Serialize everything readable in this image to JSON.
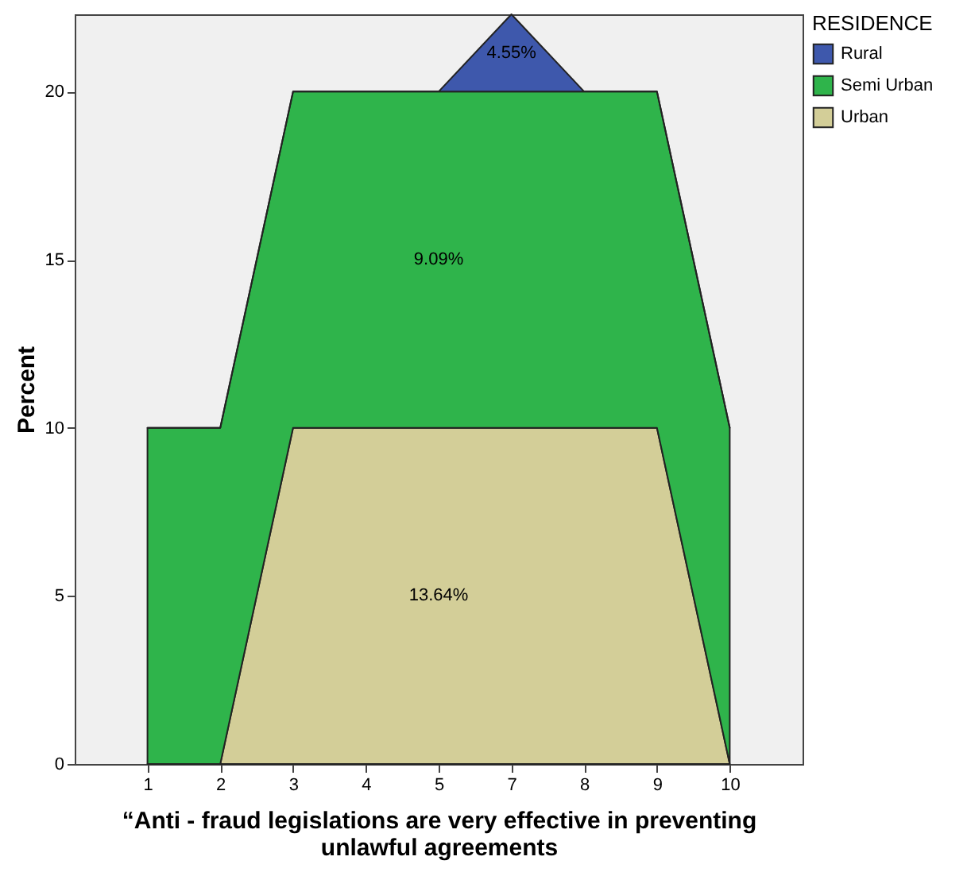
{
  "chart_data": {
    "type": "area",
    "stacked": true,
    "xlabel": "“Anti - fraud legislations are very effective in preventing unlawful agreements",
    "ylabel": "Percent",
    "legend_title": "RESIDENCE",
    "legend": "top right",
    "categories": [
      "1",
      "2",
      "3",
      "4",
      "5",
      "7",
      "8",
      "9",
      "10"
    ],
    "series": [
      {
        "name": "Urban",
        "color": "#d3ce98",
        "values": [
          0,
          0,
          10,
          10,
          10,
          10,
          10,
          10,
          0
        ]
      },
      {
        "name": "Semi Urban",
        "color": "#2fb44b",
        "values": [
          10,
          10,
          10,
          10,
          10,
          10,
          10,
          10,
          10
        ]
      },
      {
        "name": "Rural",
        "color": "#3e58ac",
        "values": [
          0,
          0,
          0,
          0,
          0,
          2.3,
          0,
          0,
          0
        ]
      }
    ],
    "ylim": [
      0,
      22.3
    ],
    "yticks": [
      0,
      5,
      10,
      15,
      20
    ],
    "grid": false,
    "annotations": [
      "4.55%",
      "9.09%",
      "13.64%"
    ]
  }
}
